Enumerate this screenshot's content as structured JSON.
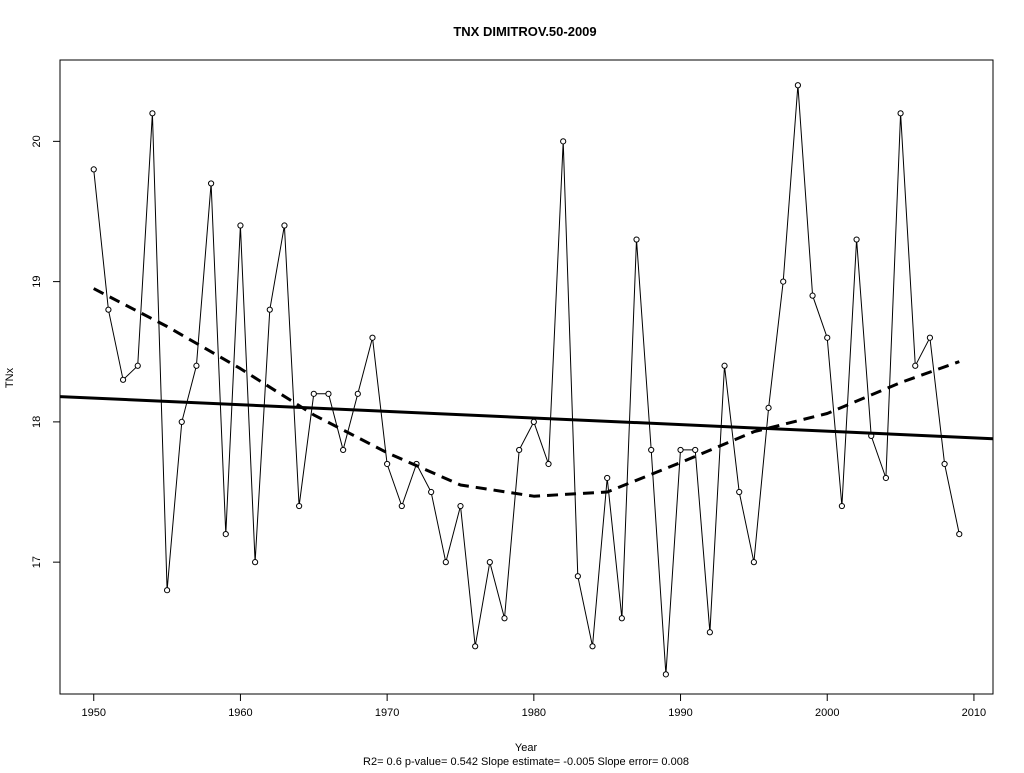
{
  "chart_data": {
    "type": "line",
    "title": "TNX   DIMITROV.50-2009",
    "xlabel": "Year",
    "ylabel": "TNx",
    "footer": "R2= 0.6  p-value= 0.542  Slope estimate= -0.005  Slope error= 0.008",
    "xlim": [
      1947.7,
      2011.3
    ],
    "ylim": [
      16.06,
      20.58
    ],
    "x_ticks": [
      1950,
      1960,
      1970,
      1980,
      1990,
      2000,
      2010
    ],
    "y_ticks": [
      17,
      18,
      19,
      20
    ],
    "grid": false,
    "series": [
      {
        "style": "line-with-open-circles",
        "x": [
          1950,
          1951,
          1952,
          1953,
          1954,
          1955,
          1956,
          1957,
          1958,
          1959,
          1960,
          1961,
          1962,
          1963,
          1964,
          1965,
          1966,
          1967,
          1968,
          1969,
          1970,
          1971,
          1972,
          1973,
          1974,
          1975,
          1976,
          1977,
          1978,
          1979,
          1980,
          1981,
          1982,
          1983,
          1984,
          1985,
          1986,
          1987,
          1988,
          1989,
          1990,
          1991,
          1992,
          1993,
          1994,
          1995,
          1996,
          1997,
          1998,
          1999,
          2000,
          2001,
          2002,
          2003,
          2004,
          2005,
          2006,
          2007,
          2008,
          2009
        ],
        "y": [
          19.8,
          18.8,
          18.3,
          18.4,
          20.2,
          16.8,
          18.0,
          18.4,
          19.7,
          17.2,
          19.4,
          17.0,
          18.8,
          19.4,
          17.4,
          18.2,
          18.2,
          17.8,
          18.2,
          18.6,
          17.7,
          17.4,
          17.7,
          17.5,
          17.0,
          17.4,
          16.4,
          17.0,
          16.6,
          17.8,
          18.0,
          17.7,
          20.0,
          16.9,
          16.4,
          17.6,
          16.6,
          19.3,
          17.8,
          16.2,
          17.8,
          17.8,
          16.5,
          18.4,
          17.5,
          17.0,
          18.1,
          19.0,
          20.4,
          18.9,
          18.6,
          17.4,
          19.3,
          17.9,
          17.6,
          20.2,
          18.4,
          18.6,
          17.7,
          17.2
        ]
      },
      {
        "style": "solid-thick",
        "x": [
          1947.7,
          2011.3
        ],
        "y": [
          18.18,
          17.88
        ]
      },
      {
        "style": "dashed-thick",
        "x": [
          1950,
          1955,
          1960,
          1965,
          1970,
          1975,
          1980,
          1985,
          1990,
          1995,
          2000,
          2005,
          2009
        ],
        "y": [
          18.95,
          18.68,
          18.38,
          18.05,
          17.78,
          17.55,
          17.47,
          17.5,
          17.71,
          17.93,
          18.06,
          18.28,
          18.43
        ]
      }
    ]
  }
}
